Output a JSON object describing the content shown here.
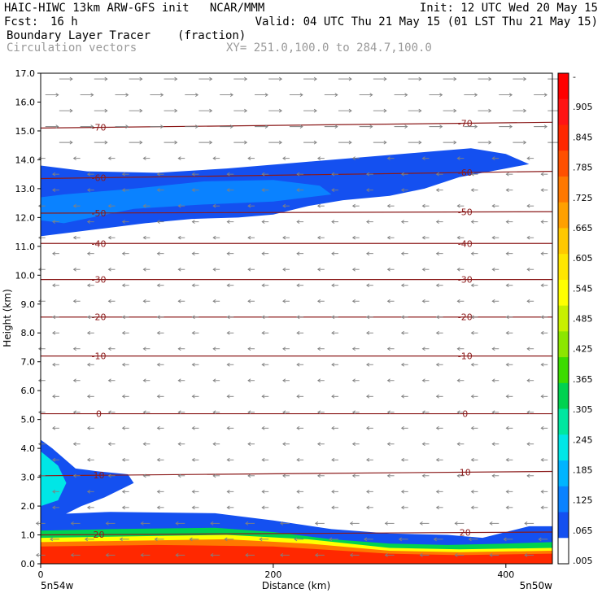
{
  "header": {
    "line1_left": "HAIC-HIWC 13km ARW-GFS init   NCAR/MMM",
    "line1_right": "Init: 12 UTC Wed 20 May 15",
    "fcst_label": "Fcst:",
    "fcst_value": "16 h",
    "valid": "Valid: 04 UTC Thu 21 May 15 (01 LST Thu 21 May 15)",
    "field_name": "Boundary Layer Tracer",
    "field_units": "(fraction)",
    "vector_name": "Circulation vectors",
    "xy_range": "XY= 251.0,100.0 to 284.7,100.0"
  },
  "colors": {
    "contour": "#8b1a1a",
    "vector": "#808080",
    "tracer_scale": [
      "#ffffff",
      "#1450f0",
      "#0a82ff",
      "#00b4ff",
      "#00e6e6",
      "#00e6a0",
      "#00d250",
      "#3cdc00",
      "#8ce600",
      "#c8f000",
      "#ffff00",
      "#ffe600",
      "#ffc800",
      "#ffa000",
      "#ff7800",
      "#ff5000",
      "#ff2800",
      "#ff1414",
      "#ff0000"
    ]
  },
  "chart_data": {
    "type": "heatmap",
    "title": "Boundary Layer Tracer",
    "xlabel": "Distance (km)",
    "ylabel": "Height (km)",
    "xlim": [
      0,
      440
    ],
    "ylim": [
      0,
      17
    ],
    "x_ticks": [
      0,
      200,
      400
    ],
    "y_ticks": [
      "0.0",
      "1.0",
      "2.0",
      "3.0",
      "4.0",
      "5.0",
      "6.0",
      "7.0",
      "8.0",
      "9.0",
      "10.0",
      "11.0",
      "12.0",
      "13.0",
      "14.0",
      "15.0",
      "16.0",
      "17.0"
    ],
    "x_endpoint_left": "5n54w",
    "x_endpoint_right": "5n50w",
    "colorbar_labels": [
      "-",
      ".905",
      ".845",
      ".785",
      ".725",
      ".665",
      ".605",
      ".545",
      ".485",
      ".425",
      ".365",
      ".305",
      ".245",
      ".185",
      ".125",
      ".065",
      ".005"
    ],
    "isotherms": [
      {
        "value": -70,
        "label": "-70",
        "y_left": 15.1,
        "y_right": 15.3
      },
      {
        "value": -60,
        "label": "-60",
        "y_left": 13.35,
        "y_right": 13.6
      },
      {
        "value": -50,
        "label": "-50",
        "y_left": 12.15,
        "y_right": 12.2
      },
      {
        "value": -40,
        "label": "-40",
        "y_left": 11.1,
        "y_right": 11.1
      },
      {
        "value": -30,
        "label": "-30",
        "y_left": 9.85,
        "y_right": 9.85
      },
      {
        "value": -20,
        "label": "-20",
        "y_left": 8.55,
        "y_right": 8.55
      },
      {
        "value": -10,
        "label": "-10",
        "y_left": 7.2,
        "y_right": 7.2
      },
      {
        "value": 0,
        "label": "0",
        "y_left": 5.2,
        "y_right": 5.2
      },
      {
        "value": 10,
        "label": "10",
        "y_left": 3.05,
        "y_right": 3.2
      },
      {
        "value": 20,
        "label": "20",
        "y_left": 1.0,
        "y_right": 1.1
      }
    ],
    "upper_layer": {
      "top": [
        [
          0,
          13.8
        ],
        [
          40,
          13.6
        ],
        [
          100,
          13.55
        ],
        [
          160,
          13.7
        ],
        [
          220,
          13.9
        ],
        [
          280,
          14.1
        ],
        [
          340,
          14.3
        ],
        [
          370,
          14.4
        ],
        [
          400,
          14.2
        ],
        [
          420,
          13.85
        ]
      ],
      "bottom": [
        [
          420,
          13.85
        ],
        [
          400,
          13.7
        ],
        [
          360,
          13.4
        ],
        [
          330,
          13.0
        ],
        [
          300,
          12.75
        ],
        [
          260,
          12.6
        ],
        [
          230,
          12.4
        ],
        [
          200,
          12.1
        ],
        [
          170,
          12.0
        ],
        [
          130,
          11.95
        ],
        [
          90,
          11.8
        ],
        [
          50,
          11.6
        ],
        [
          0,
          11.35
        ]
      ],
      "core": [
        [
          0,
          12.7
        ],
        [
          20,
          12.8
        ],
        [
          80,
          13.0
        ],
        [
          140,
          13.25
        ],
        [
          200,
          13.3
        ],
        [
          240,
          13.1
        ],
        [
          250,
          12.8
        ],
        [
          200,
          12.55
        ],
        [
          140,
          12.45
        ],
        [
          80,
          12.3
        ],
        [
          20,
          11.8
        ],
        [
          0,
          11.9
        ]
      ]
    },
    "low_plume": {
      "outline": [
        [
          0,
          4.3
        ],
        [
          10,
          4.0
        ],
        [
          30,
          3.3
        ],
        [
          50,
          3.2
        ],
        [
          75,
          3.1
        ],
        [
          80,
          2.8
        ],
        [
          55,
          2.3
        ],
        [
          35,
          2.0
        ],
        [
          20,
          1.7
        ],
        [
          0,
          1.6
        ]
      ],
      "core": [
        [
          0,
          3.9
        ],
        [
          15,
          3.4
        ],
        [
          22,
          2.8
        ],
        [
          15,
          2.2
        ],
        [
          0,
          2.0
        ]
      ]
    },
    "boundary_layer": [
      {
        "min": 0.005,
        "top": [
          [
            0,
            1.7
          ],
          [
            60,
            1.8
          ],
          [
            150,
            1.75
          ],
          [
            200,
            1.5
          ],
          [
            250,
            1.2
          ],
          [
            300,
            1.05
          ],
          [
            350,
            1.0
          ],
          [
            380,
            0.9
          ],
          [
            400,
            1.1
          ],
          [
            420,
            1.3
          ],
          [
            440,
            1.3
          ]
        ]
      },
      {
        "min": 0.305,
        "top": [
          [
            0,
            1.15
          ],
          [
            60,
            1.2
          ],
          [
            150,
            1.25
          ],
          [
            200,
            1.1
          ],
          [
            250,
            0.85
          ],
          [
            300,
            0.7
          ],
          [
            350,
            0.65
          ],
          [
            400,
            0.7
          ],
          [
            440,
            0.75
          ]
        ]
      },
      {
        "min": 0.545,
        "top": [
          [
            0,
            0.9
          ],
          [
            80,
            0.95
          ],
          [
            160,
            1.0
          ],
          [
            230,
            0.85
          ],
          [
            300,
            0.55
          ],
          [
            360,
            0.5
          ],
          [
            440,
            0.55
          ]
        ]
      },
      {
        "min": 0.785,
        "top": [
          [
            0,
            0.75
          ],
          [
            80,
            0.8
          ],
          [
            160,
            0.85
          ],
          [
            230,
            0.7
          ],
          [
            300,
            0.45
          ],
          [
            360,
            0.4
          ],
          [
            440,
            0.45
          ]
        ]
      },
      {
        "min": 0.905,
        "top": [
          [
            0,
            0.6
          ],
          [
            100,
            0.65
          ],
          [
            200,
            0.6
          ],
          [
            300,
            0.35
          ],
          [
            360,
            0.3
          ],
          [
            440,
            0.35
          ]
        ]
      }
    ]
  }
}
